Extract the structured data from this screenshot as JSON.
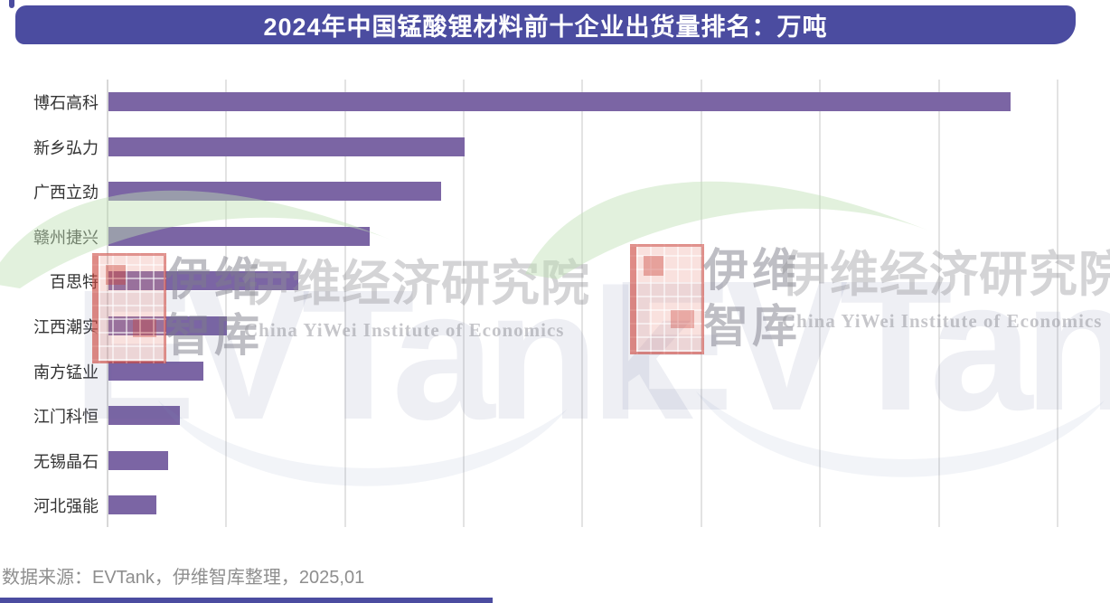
{
  "header": {
    "title": "2024年中国锰酸锂材料前十企业出货量排名：万吨"
  },
  "chart_data": {
    "type": "bar",
    "orientation": "horizontal",
    "title": "2024年中国锰酸锂材料前十企业出货量排名：万吨",
    "unit": "万吨",
    "categories": [
      "博石高科",
      "新乡弘力",
      "广西立劲",
      "赣州捷兴",
      "百思特",
      "江西潮实",
      "南方锰业",
      "江门科恒",
      "无锡晶石",
      "河北强能"
    ],
    "values": [
      7.6,
      3.0,
      2.8,
      2.2,
      1.6,
      1.0,
      0.8,
      0.6,
      0.5,
      0.4
    ],
    "xlabel": "",
    "ylabel": "",
    "xlim": [
      0,
      8.45
    ],
    "gridline_interval": 1,
    "grid": true,
    "legend": "none",
    "bar_color": "#7B65A4"
  },
  "watermark": {
    "seal_line1": "伊维",
    "seal_line2": "智库",
    "cn_title": "伊维经济研究院",
    "en_title": "China YiWei Institute of Economics",
    "brand": "EVTank"
  },
  "footer": {
    "source": "数据来源：EVTank，伊维智库整理，2025,01"
  },
  "colors": {
    "banner_bg": "#4B4CA0",
    "bar": "#7B65A4",
    "gridline": "#E3E3E3",
    "label_text": "#333333",
    "footer_text": "#8E8E8E",
    "watermark_green": "#BEE1B4",
    "watermark_red": "#C6362D"
  }
}
